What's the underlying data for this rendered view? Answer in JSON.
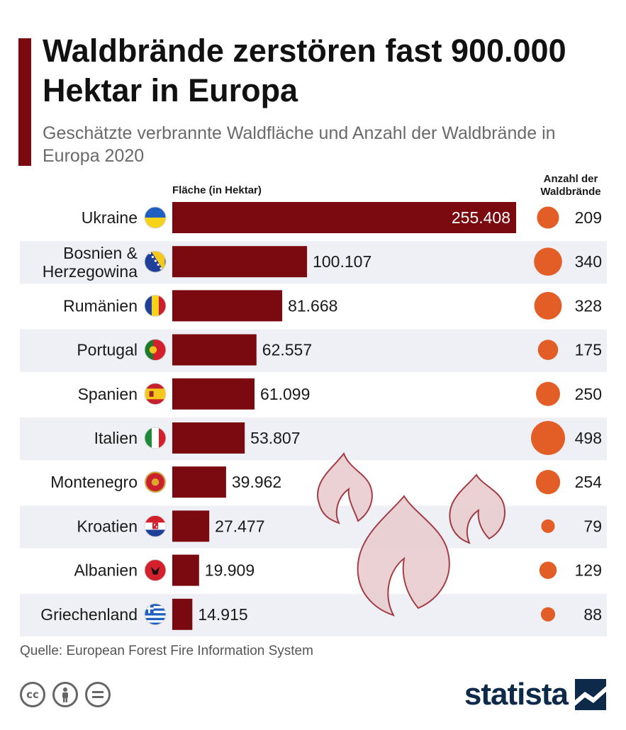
{
  "header": {
    "title": "Waldbrände zerstören fast 900.000 Hektar in Europa",
    "subtitle": "Geschätzte verbrannte Waldfläche und Anzahl der Waldbrände in Europa 2020"
  },
  "columns": {
    "area_label": "Fläche (in Hektar)",
    "count_label_line1": "Anzahl der",
    "count_label_line2": "Waldbrände"
  },
  "colors": {
    "bar": "#7a0a0f",
    "bubble": "#e35d27",
    "row_band": "#eef0f6",
    "accent": "#7a0a0f"
  },
  "chart_data": {
    "type": "bar",
    "orientation": "horizontal",
    "title": "Waldbrände zerstören fast 900.000 Hektar in Europa",
    "subtitle": "Geschätzte verbrannte Waldfläche und Anzahl der Waldbrände in Europa 2020",
    "categories": [
      "Ukraine",
      "Bosnien & Herzegowina",
      "Rumänien",
      "Portugal",
      "Spanien",
      "Italien",
      "Montenegro",
      "Kroatien",
      "Albanien",
      "Griechenland"
    ],
    "category_lines": [
      [
        "Ukraine"
      ],
      [
        "Bosnien &",
        "Herzegowina"
      ],
      [
        "Rumänien"
      ],
      [
        "Portugal"
      ],
      [
        "Spanien"
      ],
      [
        "Italien"
      ],
      [
        "Montenegro"
      ],
      [
        "Kroatien"
      ],
      [
        "Albanien"
      ],
      [
        "Griechenland"
      ]
    ],
    "series": [
      {
        "name": "Fläche (in Hektar)",
        "values": [
          255408,
          100107,
          81668,
          62557,
          61099,
          53807,
          39962,
          27477,
          19909,
          14915
        ],
        "labels": [
          "255.408",
          "100.107",
          "81.668",
          "62.557",
          "61.099",
          "53.807",
          "39.962",
          "27.477",
          "19.909",
          "14.915"
        ]
      },
      {
        "name": "Anzahl der Waldbrände",
        "values": [
          209,
          340,
          328,
          175,
          250,
          498,
          254,
          79,
          129,
          88
        ],
        "labels": [
          "209",
          "340",
          "328",
          "175",
          "250",
          "498",
          "254",
          "79",
          "129",
          "88"
        ]
      }
    ],
    "flags": [
      "flag-ukraine",
      "flag-bosnia-herzegovina",
      "flag-romania",
      "flag-portugal",
      "flag-spain",
      "flag-italy",
      "flag-montenegro",
      "flag-croatia",
      "flag-albania",
      "flag-greece"
    ],
    "grid": false,
    "legend": "none"
  },
  "footer": {
    "source": "Quelle: European Forest Fire Information System",
    "license_icons": [
      "cc-icon",
      "by-person-icon",
      "nd-equals-icon"
    ],
    "logo_text": "statista"
  },
  "decoration": {
    "background_icon": "flame-icon"
  }
}
